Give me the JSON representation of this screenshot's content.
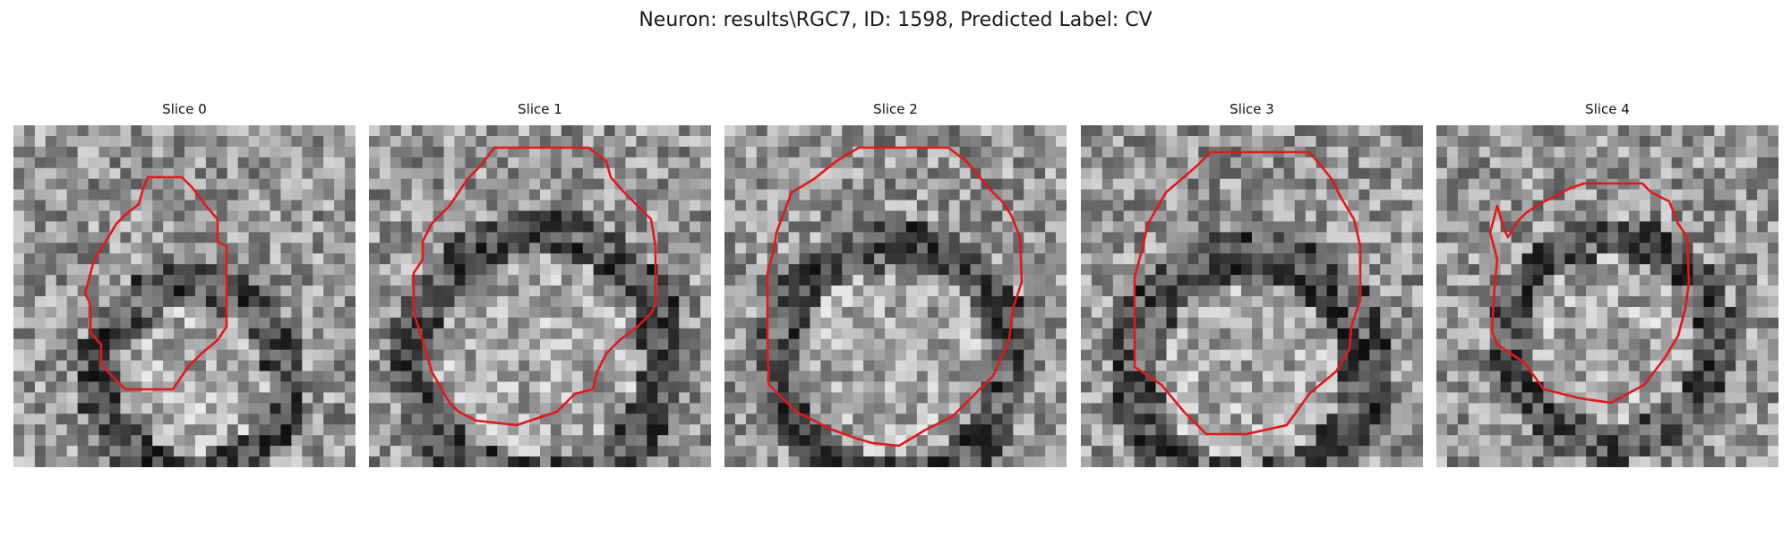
{
  "figure": {
    "title": "Neuron: results\\RGC7, ID: 1598, Predicted Label: CV",
    "outline_color": "#e0191c",
    "colormap": "grayscale"
  },
  "slices": [
    {
      "title": "Slice 0"
    },
    {
      "title": "Slice 1"
    },
    {
      "title": "Slice 2"
    },
    {
      "title": "Slice 3"
    },
    {
      "title": "Slice 4"
    }
  ]
}
